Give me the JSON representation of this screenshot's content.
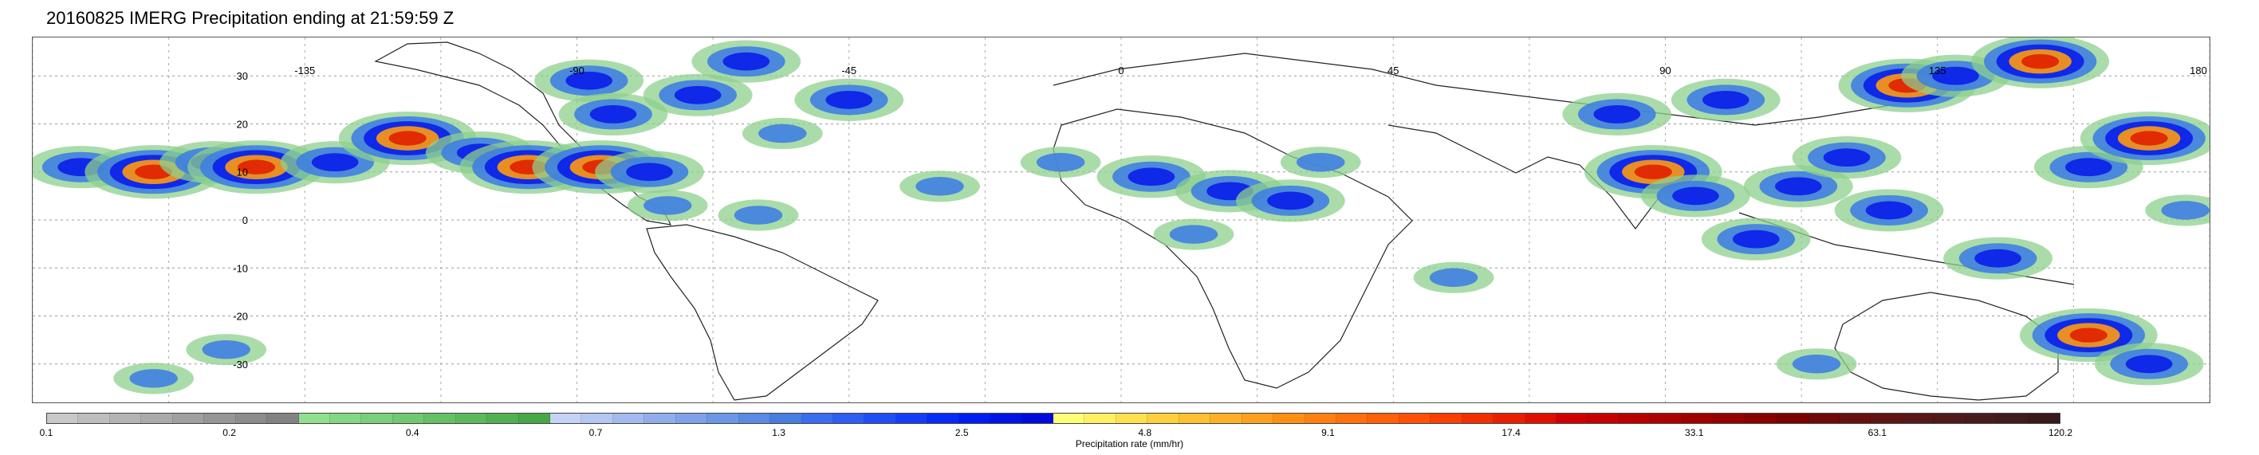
{
  "title": "20160825 IMERG Precipitation ending at 21:59:59 Z",
  "map": {
    "lat_labels": [
      "30",
      "20",
      "10",
      "0",
      "-10",
      "-20",
      "-30"
    ],
    "lat_values": [
      30,
      20,
      10,
      0,
      -10,
      -20,
      -30
    ],
    "lon_labels": [
      "-135",
      "-90",
      "-45",
      "0",
      "45",
      "90",
      "135",
      "180"
    ],
    "lon_values": [
      -135,
      -90,
      -45,
      0,
      45,
      90,
      135,
      180
    ],
    "lat_range": [
      -38,
      38
    ],
    "lon_range": [
      -180,
      180
    ],
    "grid": "dotted",
    "rain_cells": [
      {
        "lon": -172,
        "lat": 11,
        "level": 2
      },
      {
        "lon": -160,
        "lat": 10,
        "level": 3
      },
      {
        "lon": -150,
        "lat": 12,
        "level": 2
      },
      {
        "lon": -143,
        "lat": 11,
        "level": 3
      },
      {
        "lon": -130,
        "lat": 12,
        "level": 2
      },
      {
        "lon": -118,
        "lat": 17,
        "level": 3
      },
      {
        "lon": -106,
        "lat": 14,
        "level": 2
      },
      {
        "lon": -98,
        "lat": 11,
        "level": 3
      },
      {
        "lon": -88,
        "lat": 29,
        "level": 2
      },
      {
        "lon": -84,
        "lat": 22,
        "level": 2
      },
      {
        "lon": -86,
        "lat": 11,
        "level": 3
      },
      {
        "lon": -78,
        "lat": 10,
        "level": 2
      },
      {
        "lon": -70,
        "lat": 26,
        "level": 2
      },
      {
        "lon": -62,
        "lat": 33,
        "level": 2
      },
      {
        "lon": -56,
        "lat": 18,
        "level": 1
      },
      {
        "lon": -75,
        "lat": 3,
        "level": 1
      },
      {
        "lon": -60,
        "lat": 1,
        "level": 1
      },
      {
        "lon": -45,
        "lat": 25,
        "level": 2
      },
      {
        "lon": -30,
        "lat": 7,
        "level": 1
      },
      {
        "lon": -10,
        "lat": 12,
        "level": 1
      },
      {
        "lon": 5,
        "lat": 9,
        "level": 2
      },
      {
        "lon": 18,
        "lat": 6,
        "level": 2
      },
      {
        "lon": 28,
        "lat": 4,
        "level": 2
      },
      {
        "lon": 33,
        "lat": 12,
        "level": 1
      },
      {
        "lon": 12,
        "lat": -3,
        "level": 1
      },
      {
        "lon": 55,
        "lat": -12,
        "level": 1
      },
      {
        "lon": 82,
        "lat": 22,
        "level": 2
      },
      {
        "lon": 88,
        "lat": 10,
        "level": 3
      },
      {
        "lon": 95,
        "lat": 5,
        "level": 2
      },
      {
        "lon": 100,
        "lat": 25,
        "level": 2
      },
      {
        "lon": 105,
        "lat": -4,
        "level": 2
      },
      {
        "lon": 112,
        "lat": 7,
        "level": 2
      },
      {
        "lon": 120,
        "lat": 13,
        "level": 2
      },
      {
        "lon": 127,
        "lat": 2,
        "level": 2
      },
      {
        "lon": 130,
        "lat": 28,
        "level": 3
      },
      {
        "lon": 138,
        "lat": 30,
        "level": 2
      },
      {
        "lon": 152,
        "lat": 33,
        "level": 3
      },
      {
        "lon": 160,
        "lat": 11,
        "level": 2
      },
      {
        "lon": 170,
        "lat": 17,
        "level": 3
      },
      {
        "lon": 145,
        "lat": -8,
        "level": 2
      },
      {
        "lon": 160,
        "lat": -24,
        "level": 3
      },
      {
        "lon": 170,
        "lat": -30,
        "level": 2
      },
      {
        "lon": -160,
        "lat": -33,
        "level": 1
      },
      {
        "lon": -148,
        "lat": -27,
        "level": 1
      },
      {
        "lon": 115,
        "lat": -30,
        "level": 1
      },
      {
        "lon": 176,
        "lat": 2,
        "level": 1
      }
    ]
  },
  "colorbar": {
    "label": "Precipitation rate (mm/hr)",
    "tick_labels": [
      "0.1",
      "0.2",
      "0.4",
      "0.7",
      "1.3",
      "2.5",
      "4.8",
      "9.1",
      "17.4",
      "33.1",
      "63.1",
      "120.2"
    ],
    "colors": [
      "#c8c8c8",
      "#bebebe",
      "#b4b4b4",
      "#aaaaaa",
      "#a0a0a0",
      "#969696",
      "#8c8c8c",
      "#828282",
      "#8ee08e",
      "#84d884",
      "#7ad07a",
      "#70c870",
      "#66c066",
      "#5cb85c",
      "#52b052",
      "#48a848",
      "#c6d2f5",
      "#b4c6f2",
      "#a2baef",
      "#90aeec",
      "#7ea2e9",
      "#6c96e6",
      "#5a8ae3",
      "#487ee0",
      "#3c6cf0",
      "#2f5cf2",
      "#224cf4",
      "#153cf6",
      "#082cf8",
      "#001ef4",
      "#0014e8",
      "#000ada",
      "#ffff78",
      "#fff064",
      "#ffe050",
      "#ffd03c",
      "#ffc032",
      "#ffb028",
      "#ffa01e",
      "#ff9014",
      "#ff8010",
      "#ff700c",
      "#ff6008",
      "#ff5004",
      "#f84000",
      "#f03000",
      "#e82000",
      "#e01000",
      "#d00000",
      "#c40000",
      "#b80000",
      "#ac0000",
      "#a00000",
      "#940000",
      "#880000",
      "#7c0000",
      "#700a0a",
      "#681010",
      "#601414",
      "#581818",
      "#501a1a",
      "#481c1c",
      "#401c1c",
      "#381a1a"
    ]
  }
}
